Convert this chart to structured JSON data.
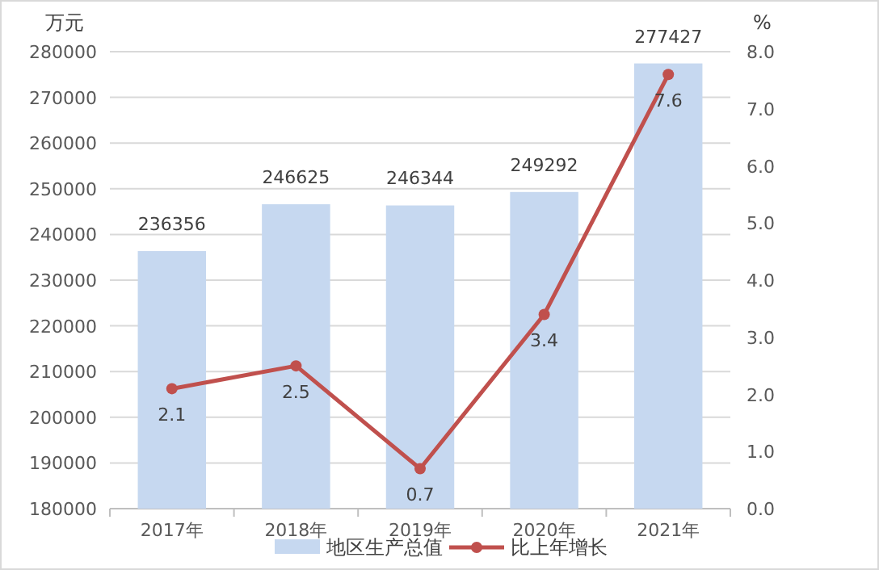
{
  "chart_data": {
    "type": "bar",
    "ylabel": "万元",
    "y2label": "%",
    "categories": [
      "2017年",
      "2018年",
      "2019年",
      "2020年",
      "2021年"
    ],
    "series": [
      {
        "name": "地区生产总值",
        "color": "#c6d8f0",
        "values": [
          236356,
          246625,
          246344,
          249292,
          277427
        ]
      },
      {
        "name": "比上年增长",
        "type": "line",
        "axis": "y2",
        "color": "#c0504d",
        "marker": "circle",
        "values": [
          2.1,
          2.5,
          0.7,
          3.4,
          7.6
        ]
      }
    ],
    "ylim": [
      180000,
      280000
    ],
    "yticks": [
      180000,
      190000,
      200000,
      210000,
      220000,
      230000,
      240000,
      250000,
      260000,
      270000,
      280000
    ],
    "y2lim": [
      0,
      8
    ],
    "y2ticks": [
      {
        "value": 0,
        "label": "0.0"
      },
      {
        "value": 1,
        "label": "1.0"
      },
      {
        "value": 2,
        "label": "2.0"
      },
      {
        "value": 3,
        "label": "3.0"
      },
      {
        "value": 4,
        "label": "4.0"
      },
      {
        "value": 5,
        "label": "5.0"
      },
      {
        "value": 6,
        "label": "6.0"
      },
      {
        "value": 7,
        "label": "7.0"
      },
      {
        "value": 8,
        "label": "8.0"
      }
    ],
    "grid": "y",
    "legend": "bottom",
    "data_labels": true
  }
}
